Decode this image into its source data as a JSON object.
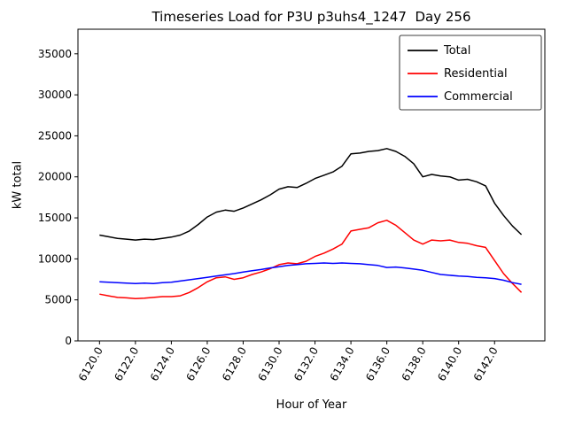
{
  "figure": {
    "title": "Timeseries Load for P3U p3uhs4_1247  Day 256",
    "xlabel": "Hour of Year",
    "ylabel": "kW total"
  },
  "chart_data": {
    "type": "line",
    "title": "Timeseries Load for P3U p3uhs4_1247  Day 256",
    "xlabel": "Hour of Year",
    "ylabel": "kW total",
    "grid": false,
    "legend_position": "upper right",
    "xlim": [
      6118.8,
      6144.8
    ],
    "ylim": [
      0,
      38000
    ],
    "xticks": [
      6120,
      6122,
      6124,
      6126,
      6128,
      6130,
      6132,
      6134,
      6136,
      6138,
      6140,
      6142
    ],
    "xtick_labels": [
      "6120.0",
      "6122.0",
      "6124.0",
      "6126.0",
      "6128.0",
      "6130.0",
      "6132.0",
      "6134.0",
      "6136.0",
      "6138.0",
      "6140.0",
      "6142.0"
    ],
    "yticks": [
      0,
      5000,
      10000,
      15000,
      20000,
      25000,
      30000,
      35000
    ],
    "x": [
      6120.0,
      6120.5,
      6121.0,
      6121.5,
      6122.0,
      6122.5,
      6123.0,
      6123.5,
      6124.0,
      6124.5,
      6125.0,
      6125.5,
      6126.0,
      6126.5,
      6127.0,
      6127.5,
      6128.0,
      6128.5,
      6129.0,
      6129.5,
      6130.0,
      6130.5,
      6131.0,
      6131.5,
      6132.0,
      6132.5,
      6133.0,
      6133.5,
      6134.0,
      6134.5,
      6135.0,
      6135.5,
      6136.0,
      6136.5,
      6137.0,
      6137.5,
      6138.0,
      6138.5,
      6139.0,
      6139.5,
      6140.0,
      6140.5,
      6141.0,
      6141.5,
      6142.0,
      6142.5,
      6143.0,
      6143.5
    ],
    "series": [
      {
        "name": "Total",
        "color": "#000000",
        "values": [
          12900,
          12700,
          12500,
          12400,
          12300,
          12400,
          12350,
          12500,
          12650,
          12900,
          13400,
          14200,
          15100,
          15700,
          15950,
          15800,
          16200,
          16700,
          17200,
          17800,
          18500,
          18800,
          18700,
          19200,
          19800,
          20200,
          20600,
          21300,
          22800,
          22900,
          23100,
          23200,
          23450,
          23100,
          22500,
          21600,
          20000,
          20300,
          20100,
          20000,
          19600,
          19700,
          19400,
          18900,
          16800,
          15300,
          14000,
          12950
        ]
      },
      {
        "name": "Residential",
        "color": "#ff0000",
        "values": [
          5700,
          5500,
          5300,
          5250,
          5150,
          5200,
          5300,
          5400,
          5400,
          5500,
          5900,
          6500,
          7200,
          7700,
          7800,
          7500,
          7700,
          8100,
          8400,
          8800,
          9300,
          9500,
          9400,
          9700,
          10300,
          10700,
          11200,
          11800,
          13400,
          13600,
          13800,
          14400,
          14700,
          14100,
          13200,
          12300,
          11800,
          12300,
          12200,
          12300,
          12000,
          11900,
          11600,
          11400,
          9800,
          8200,
          7000,
          5900
        ]
      },
      {
        "name": "Commercial",
        "color": "#0000ff",
        "values": [
          7200,
          7150,
          7100,
          7050,
          7000,
          7050,
          7000,
          7100,
          7150,
          7300,
          7450,
          7600,
          7750,
          7900,
          8050,
          8200,
          8400,
          8550,
          8700,
          8900,
          9050,
          9200,
          9300,
          9400,
          9450,
          9500,
          9450,
          9500,
          9450,
          9400,
          9300,
          9200,
          8950,
          9000,
          8900,
          8750,
          8600,
          8350,
          8100,
          8000,
          7900,
          7850,
          7750,
          7700,
          7600,
          7400,
          7100,
          6900
        ]
      }
    ]
  }
}
